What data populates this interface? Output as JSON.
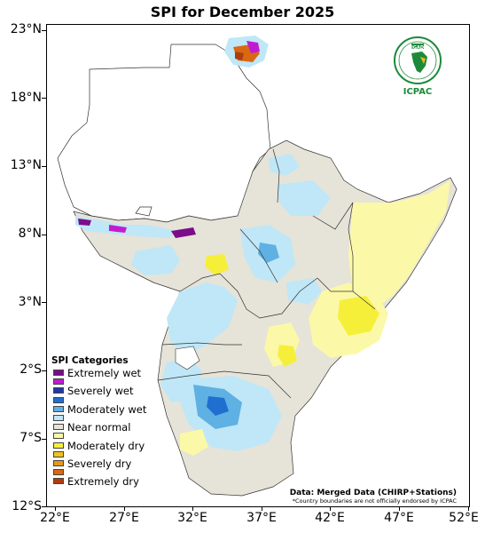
{
  "title": "SPI for December 2025",
  "axes": {
    "y_labels": [
      "23°N",
      "18°N",
      "13°N",
      "8°N",
      "3°N",
      "2°S",
      "7°S",
      "12°S"
    ],
    "x_labels": [
      "22°E",
      "27°E",
      "32°E",
      "37°E",
      "42°E",
      "47°E",
      "52°E"
    ]
  },
  "legend": {
    "title": "SPI Categories",
    "items": [
      {
        "label": "Extremely wet",
        "color": "#7b0c8a"
      },
      {
        "label": "",
        "color": "#c21bd1"
      },
      {
        "label": "Severely wet",
        "color": "#2436a8"
      },
      {
        "label": "",
        "color": "#1f6fd0"
      },
      {
        "label": "Moderately wet",
        "color": "#5fb0e3"
      },
      {
        "label": "",
        "color": "#bfe7f7"
      },
      {
        "label": "Near normal",
        "color": "#e6e3d8"
      },
      {
        "label": "",
        "color": "#fbf8a8"
      },
      {
        "label": "Moderately dry",
        "color": "#f6ef3a"
      },
      {
        "label": "",
        "color": "#f0c21c"
      },
      {
        "label": "Severely dry",
        "color": "#e59a17"
      },
      {
        "label": "",
        "color": "#d86812"
      },
      {
        "label": "Extremely dry",
        "color": "#b13c0b"
      }
    ]
  },
  "credit": {
    "main": "Data: Merged Data (CHIRP+Stations)",
    "note": "*Country boundaries are not officially endorsed by ICPAC"
  },
  "logo": {
    "top_text": "IGAD",
    "bottom_text": "ICPAC",
    "icon": "igad-africa-emblem-icon"
  }
}
